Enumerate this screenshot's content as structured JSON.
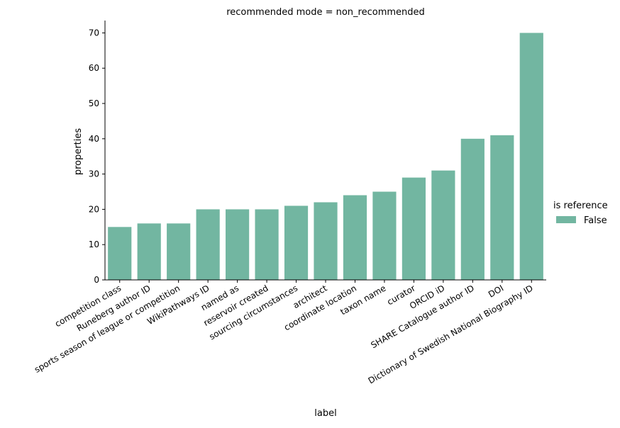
{
  "chart_data": {
    "type": "bar",
    "title": "recommended mode = non_recommended",
    "xlabel": "label",
    "ylabel": "properties",
    "ylim": [
      0,
      73.5
    ],
    "yticks": [
      "0",
      "10",
      "20",
      "30",
      "40",
      "50",
      "60",
      "70"
    ],
    "categories": [
      "competition class",
      "Runeberg author ID",
      "sports season of league or competition",
      "WikiPathways ID",
      "named as",
      "reservoir created",
      "sourcing circumstances",
      "architect",
      "coordinate location",
      "taxon name",
      "curator",
      "ORCID iD",
      "SHARE Catalogue author ID",
      "DOI",
      "Dictionary of Swedish National Biography ID"
    ],
    "series": [
      {
        "name": "False",
        "values": [
          15,
          16,
          16,
          20,
          20,
          20,
          21,
          22,
          24,
          25,
          29,
          31,
          40,
          41,
          70
        ],
        "color": "#72b6a1"
      }
    ],
    "legend": {
      "title": "is reference",
      "placement": "right",
      "entries": [
        "False"
      ]
    },
    "grid": false
  }
}
